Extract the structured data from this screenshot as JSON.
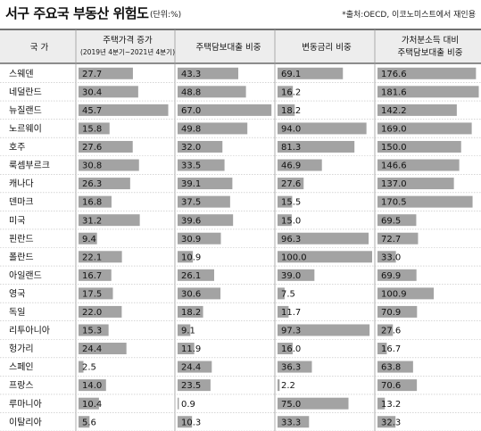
{
  "title": "서구 주요국 부동산 위험도",
  "unit": "(단위:%)",
  "source": "*출처:OECD, 이코노미스트에서 재인용",
  "headers": {
    "country": "국 가",
    "col1_line1": "주택가격 증가",
    "col1_line2": "(2019년 4분기~2021년 4분기)",
    "col2": "주택담보대출 비중",
    "col3": "변동금리 비중",
    "col4_line1": "가처분소득 대비",
    "col4_line2": "주택담보대출 비중"
  },
  "colors": {
    "bar": "#a3a3a3",
    "header_bg": "#ededed",
    "grid": "#bdbdbd"
  },
  "chart_data": {
    "type": "bar",
    "categories": [
      "스웨덴",
      "네덜란드",
      "뉴질랜드",
      "노르웨이",
      "호주",
      "룩셈부르크",
      "캐나다",
      "덴마크",
      "미국",
      "핀란드",
      "폴란드",
      "아일랜드",
      "영국",
      "독일",
      "리투아니아",
      "헝가리",
      "스페인",
      "프랑스",
      "루마니아",
      "이탈리아"
    ],
    "series": [
      {
        "name": "주택가격 증가 (2019년 4분기~2021년 4분기)",
        "values": [
          27.7,
          30.4,
          45.7,
          15.8,
          27.6,
          30.8,
          26.3,
          16.8,
          31.2,
          9.4,
          22.1,
          16.7,
          17.5,
          22.0,
          15.3,
          24.4,
          2.5,
          14.0,
          10.4,
          5.6
        ]
      },
      {
        "name": "주택담보대출 비중",
        "values": [
          43.3,
          48.8,
          67.0,
          49.8,
          32.0,
          33.5,
          39.1,
          37.5,
          39.6,
          30.9,
          10.9,
          26.1,
          30.6,
          18.2,
          9.1,
          11.9,
          24.4,
          23.5,
          0.9,
          10.3
        ]
      },
      {
        "name": "변동금리 비중",
        "values": [
          69.1,
          16.2,
          18.2,
          94.0,
          81.3,
          46.9,
          27.6,
          15.5,
          15.0,
          96.3,
          100.0,
          39.0,
          7.5,
          11.7,
          97.3,
          16.0,
          36.3,
          2.2,
          75.0,
          33.3
        ]
      },
      {
        "name": "가처분소득 대비 주택담보대출 비중",
        "values": [
          176.6,
          181.6,
          142.2,
          169.0,
          150.0,
          146.6,
          137.0,
          170.5,
          69.5,
          72.7,
          33.0,
          69.9,
          100.9,
          70.9,
          27.6,
          16.7,
          63.8,
          70.6,
          13.2,
          32.3
        ]
      }
    ]
  }
}
